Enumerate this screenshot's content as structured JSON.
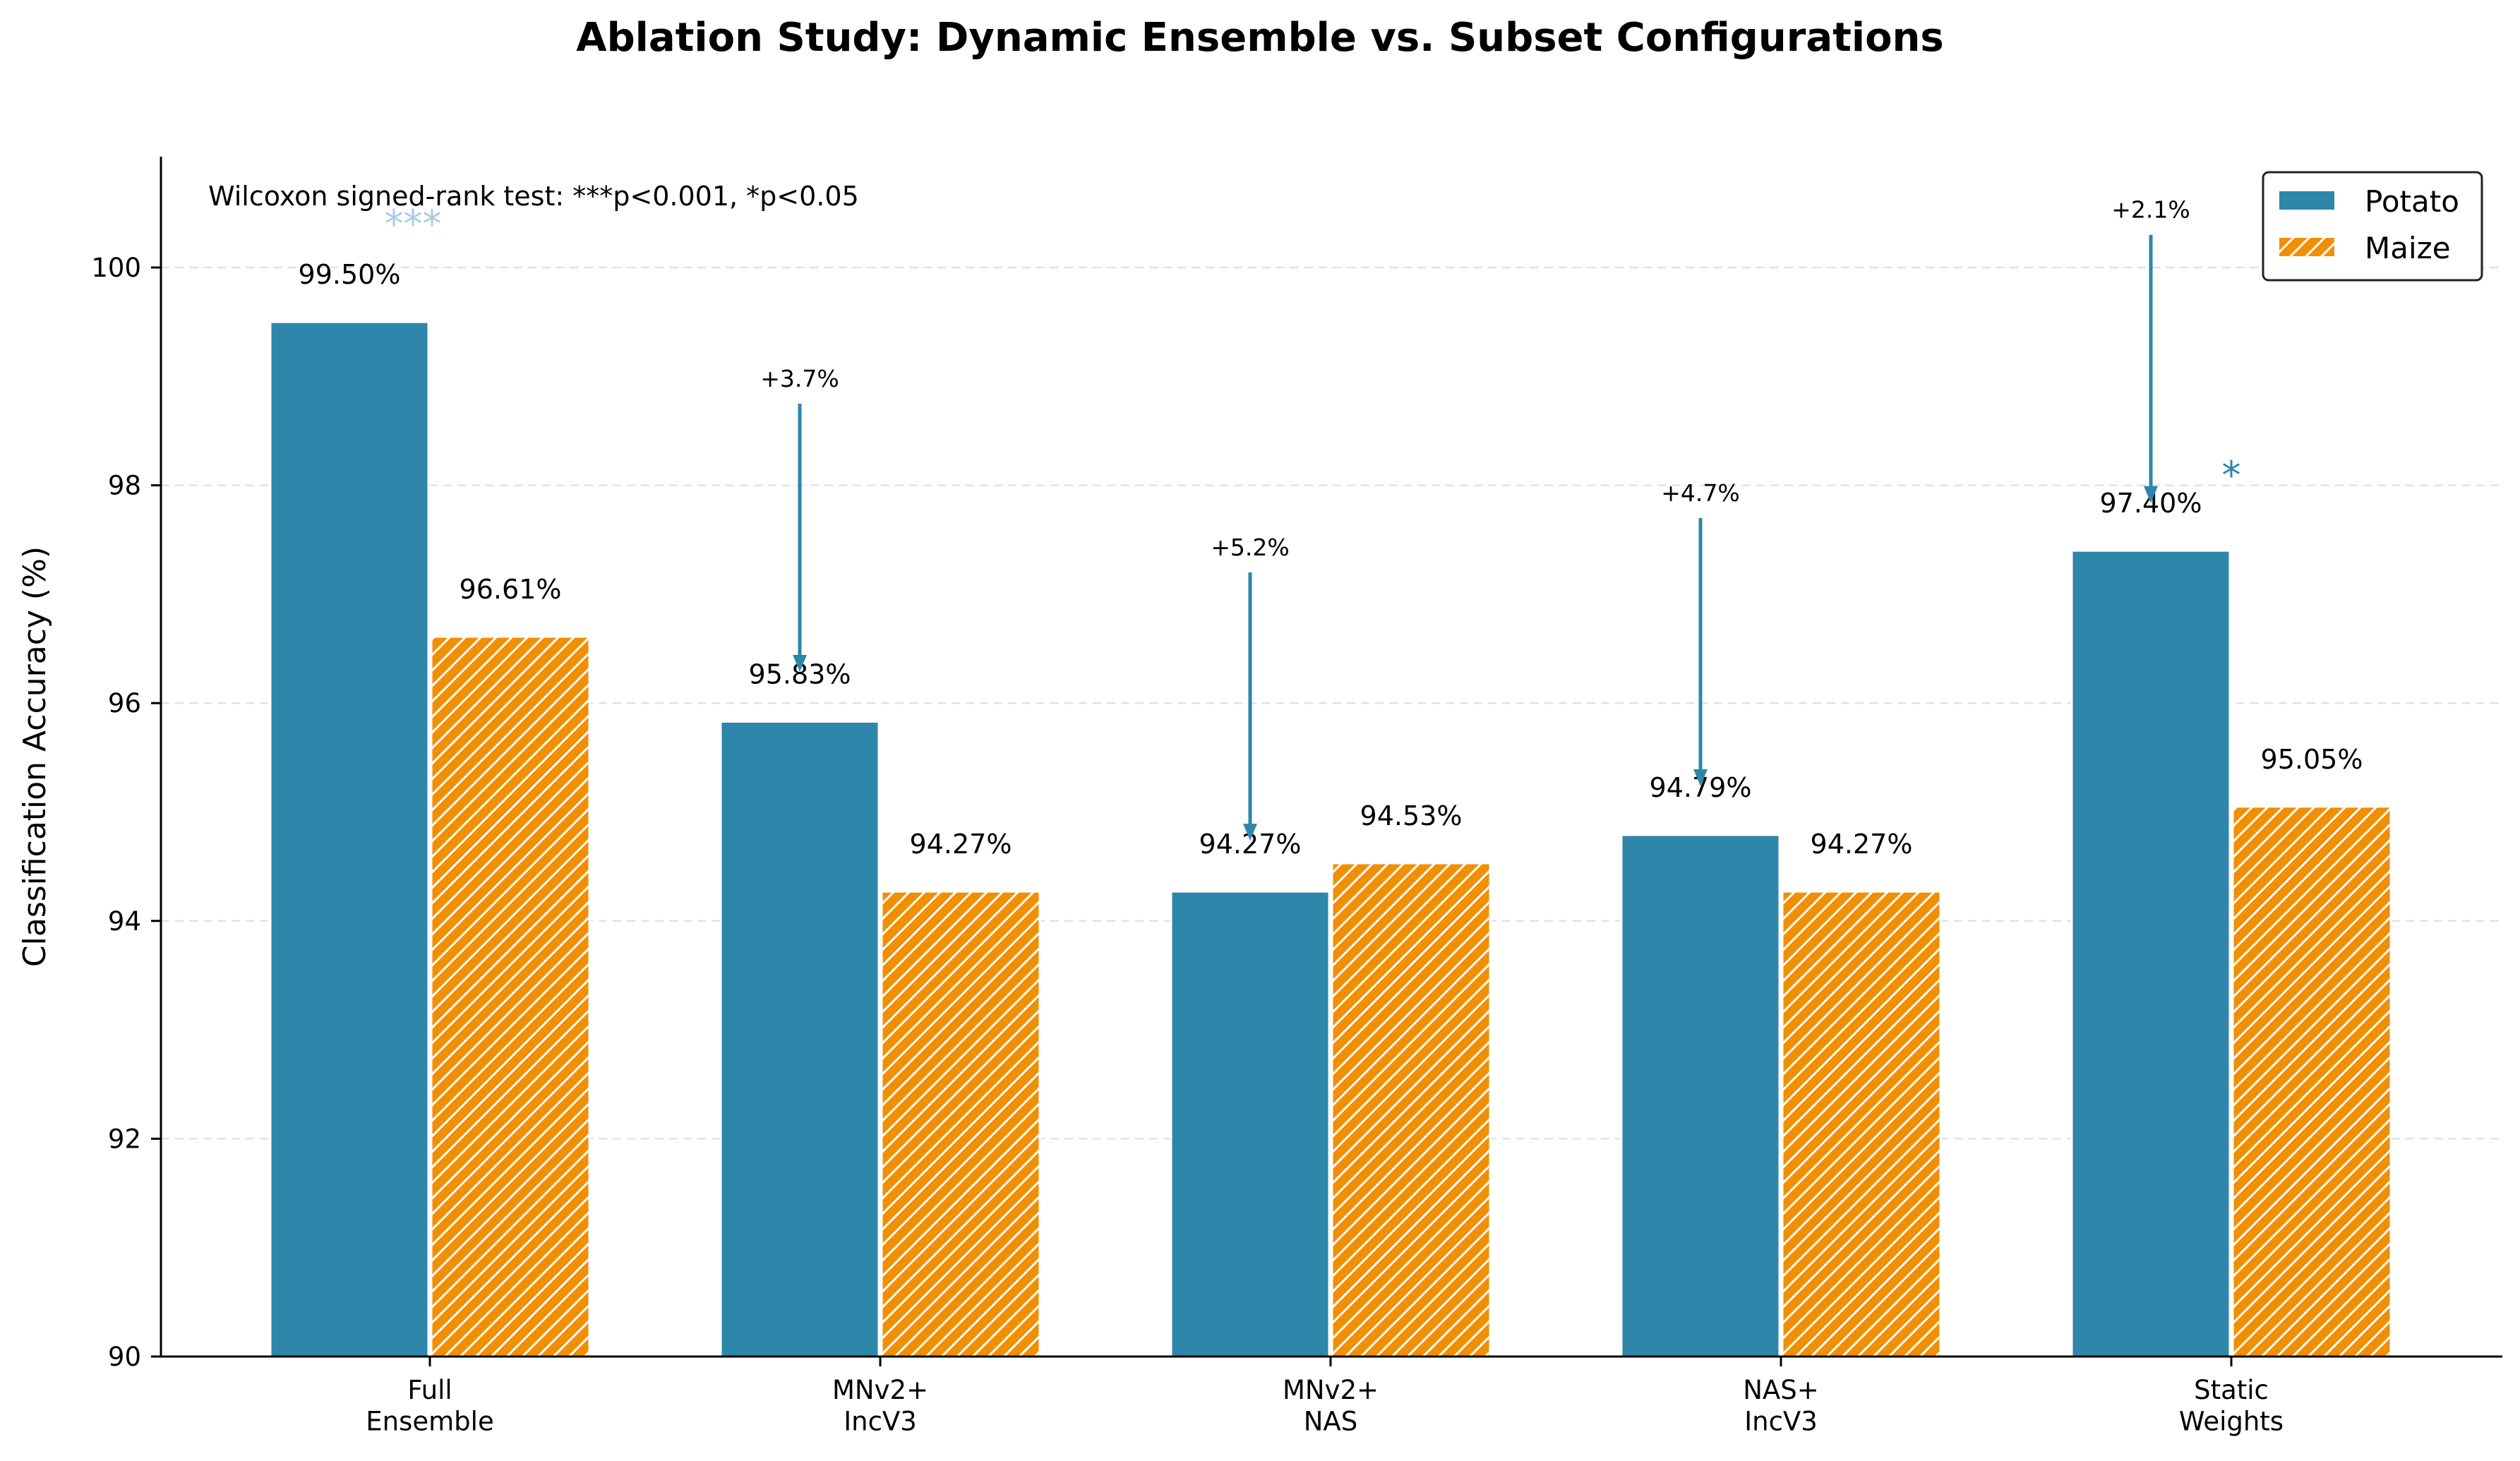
{
  "chart_data": {
    "type": "bar",
    "title": "Ablation Study: Dynamic Ensemble vs. Subset Configurations",
    "xlabel": "",
    "ylabel": "Classification Accuracy (%)",
    "ylim": [
      90,
      101
    ],
    "yticks": [
      90,
      92,
      94,
      96,
      98,
      100
    ],
    "grid": "horizontal-dashed",
    "legend_position": "top-right",
    "categories": [
      [
        "Full",
        "Ensemble"
      ],
      [
        "MNv2+",
        "IncV3"
      ],
      [
        "MNv2+",
        "NAS"
      ],
      [
        "NAS+",
        "IncV3"
      ],
      [
        "Static",
        "Weights"
      ]
    ],
    "series": [
      {
        "name": "Potato",
        "color": "#2E86AB",
        "pattern": "solid",
        "values": [
          99.5,
          95.83,
          94.27,
          94.79,
          97.4
        ]
      },
      {
        "name": "Maize",
        "color": "#F18F01",
        "pattern": "hatched",
        "values": [
          96.61,
          94.27,
          94.53,
          94.27,
          95.05
        ]
      }
    ],
    "value_labels": [
      [
        "99.50%",
        "95.83%",
        "94.27%",
        "94.79%",
        "97.40%"
      ],
      [
        "96.61%",
        "94.27%",
        "94.53%",
        "94.27%",
        "95.05%"
      ]
    ],
    "improvements": [
      {
        "category_index": 1,
        "label": "+3.7%",
        "from": 98.75,
        "to": 96.3
      },
      {
        "category_index": 2,
        "label": "+5.2%",
        "from": 97.2,
        "to": 94.75
      },
      {
        "category_index": 3,
        "label": "+4.7%",
        "from": 97.7,
        "to": 95.25
      },
      {
        "category_index": 4,
        "label": "+2.1%",
        "from": 100.3,
        "to": 97.85
      }
    ],
    "significance": [
      {
        "category_index": 0,
        "series": "Potato",
        "marker": "***",
        "color": "#A9CCE3"
      },
      {
        "category_index": 4,
        "series": "Maize",
        "marker": "*",
        "color": "#2E86AB"
      }
    ],
    "annotation": "Wilcoxon signed-rank test: ***p<0.001, *p<0.05"
  }
}
